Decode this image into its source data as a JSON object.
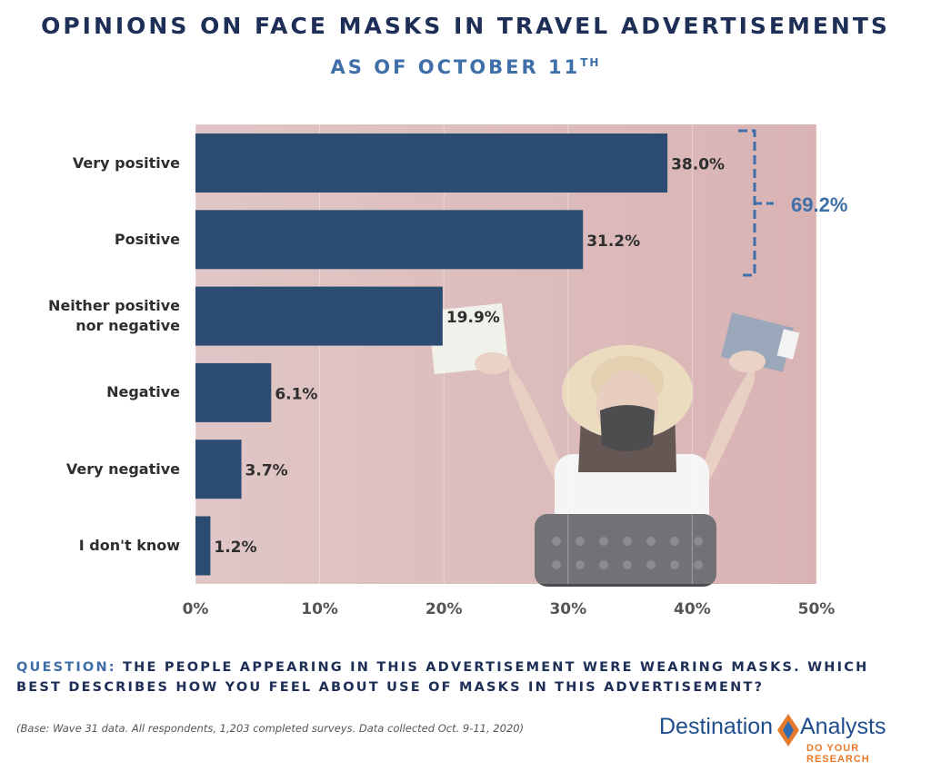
{
  "header": {
    "title": "OPINIONS ON FACE MASKS IN TRAVEL ADVERTISEMENTS",
    "subtitle": "AS OF OCTOBER 11",
    "subtitle_sup": "TH"
  },
  "chart_data": {
    "type": "bar",
    "orientation": "horizontal",
    "categories": [
      "Very positive",
      "Positive",
      "Neither positive nor negative",
      "Negative",
      "Very negative",
      "I don't know"
    ],
    "values": [
      38.0,
      31.2,
      19.9,
      6.1,
      3.7,
      1.2
    ],
    "value_labels": [
      "38.0%",
      "31.2%",
      "19.9%",
      "6.1%",
      "3.7%",
      "1.2%"
    ],
    "xlim": [
      0,
      50
    ],
    "xticks": [
      "0%",
      "10%",
      "20%",
      "30%",
      "40%",
      "50%"
    ],
    "grid": true,
    "annotation": {
      "text": "69.2%",
      "brackets": [
        "Very positive",
        "Positive"
      ]
    },
    "bar_color": "#2d4c72",
    "plot_background": "#d9b2b2"
  },
  "question": {
    "lead": "QUESTION:",
    "text": "THE PEOPLE APPEARING IN THIS ADVERTISEMENT WERE WEARING MASKS.  WHICH BEST DESCRIBES HOW YOU FEEL ABOUT USE OF MASKS IN THIS ADVERTISEMENT?"
  },
  "base_note": "(Base: Wave 31 data. All respondents, 1,203 completed surveys. Data collected Oct. 9-11, 2020)",
  "logo": {
    "word1": "Destination",
    "word2": "Analysts",
    "tagline": "DO YOUR RESEARCH"
  },
  "colors": {
    "title": "#1d2e57",
    "accent_blue": "#3f6fa8",
    "logo_orange": "#e87a2b"
  }
}
